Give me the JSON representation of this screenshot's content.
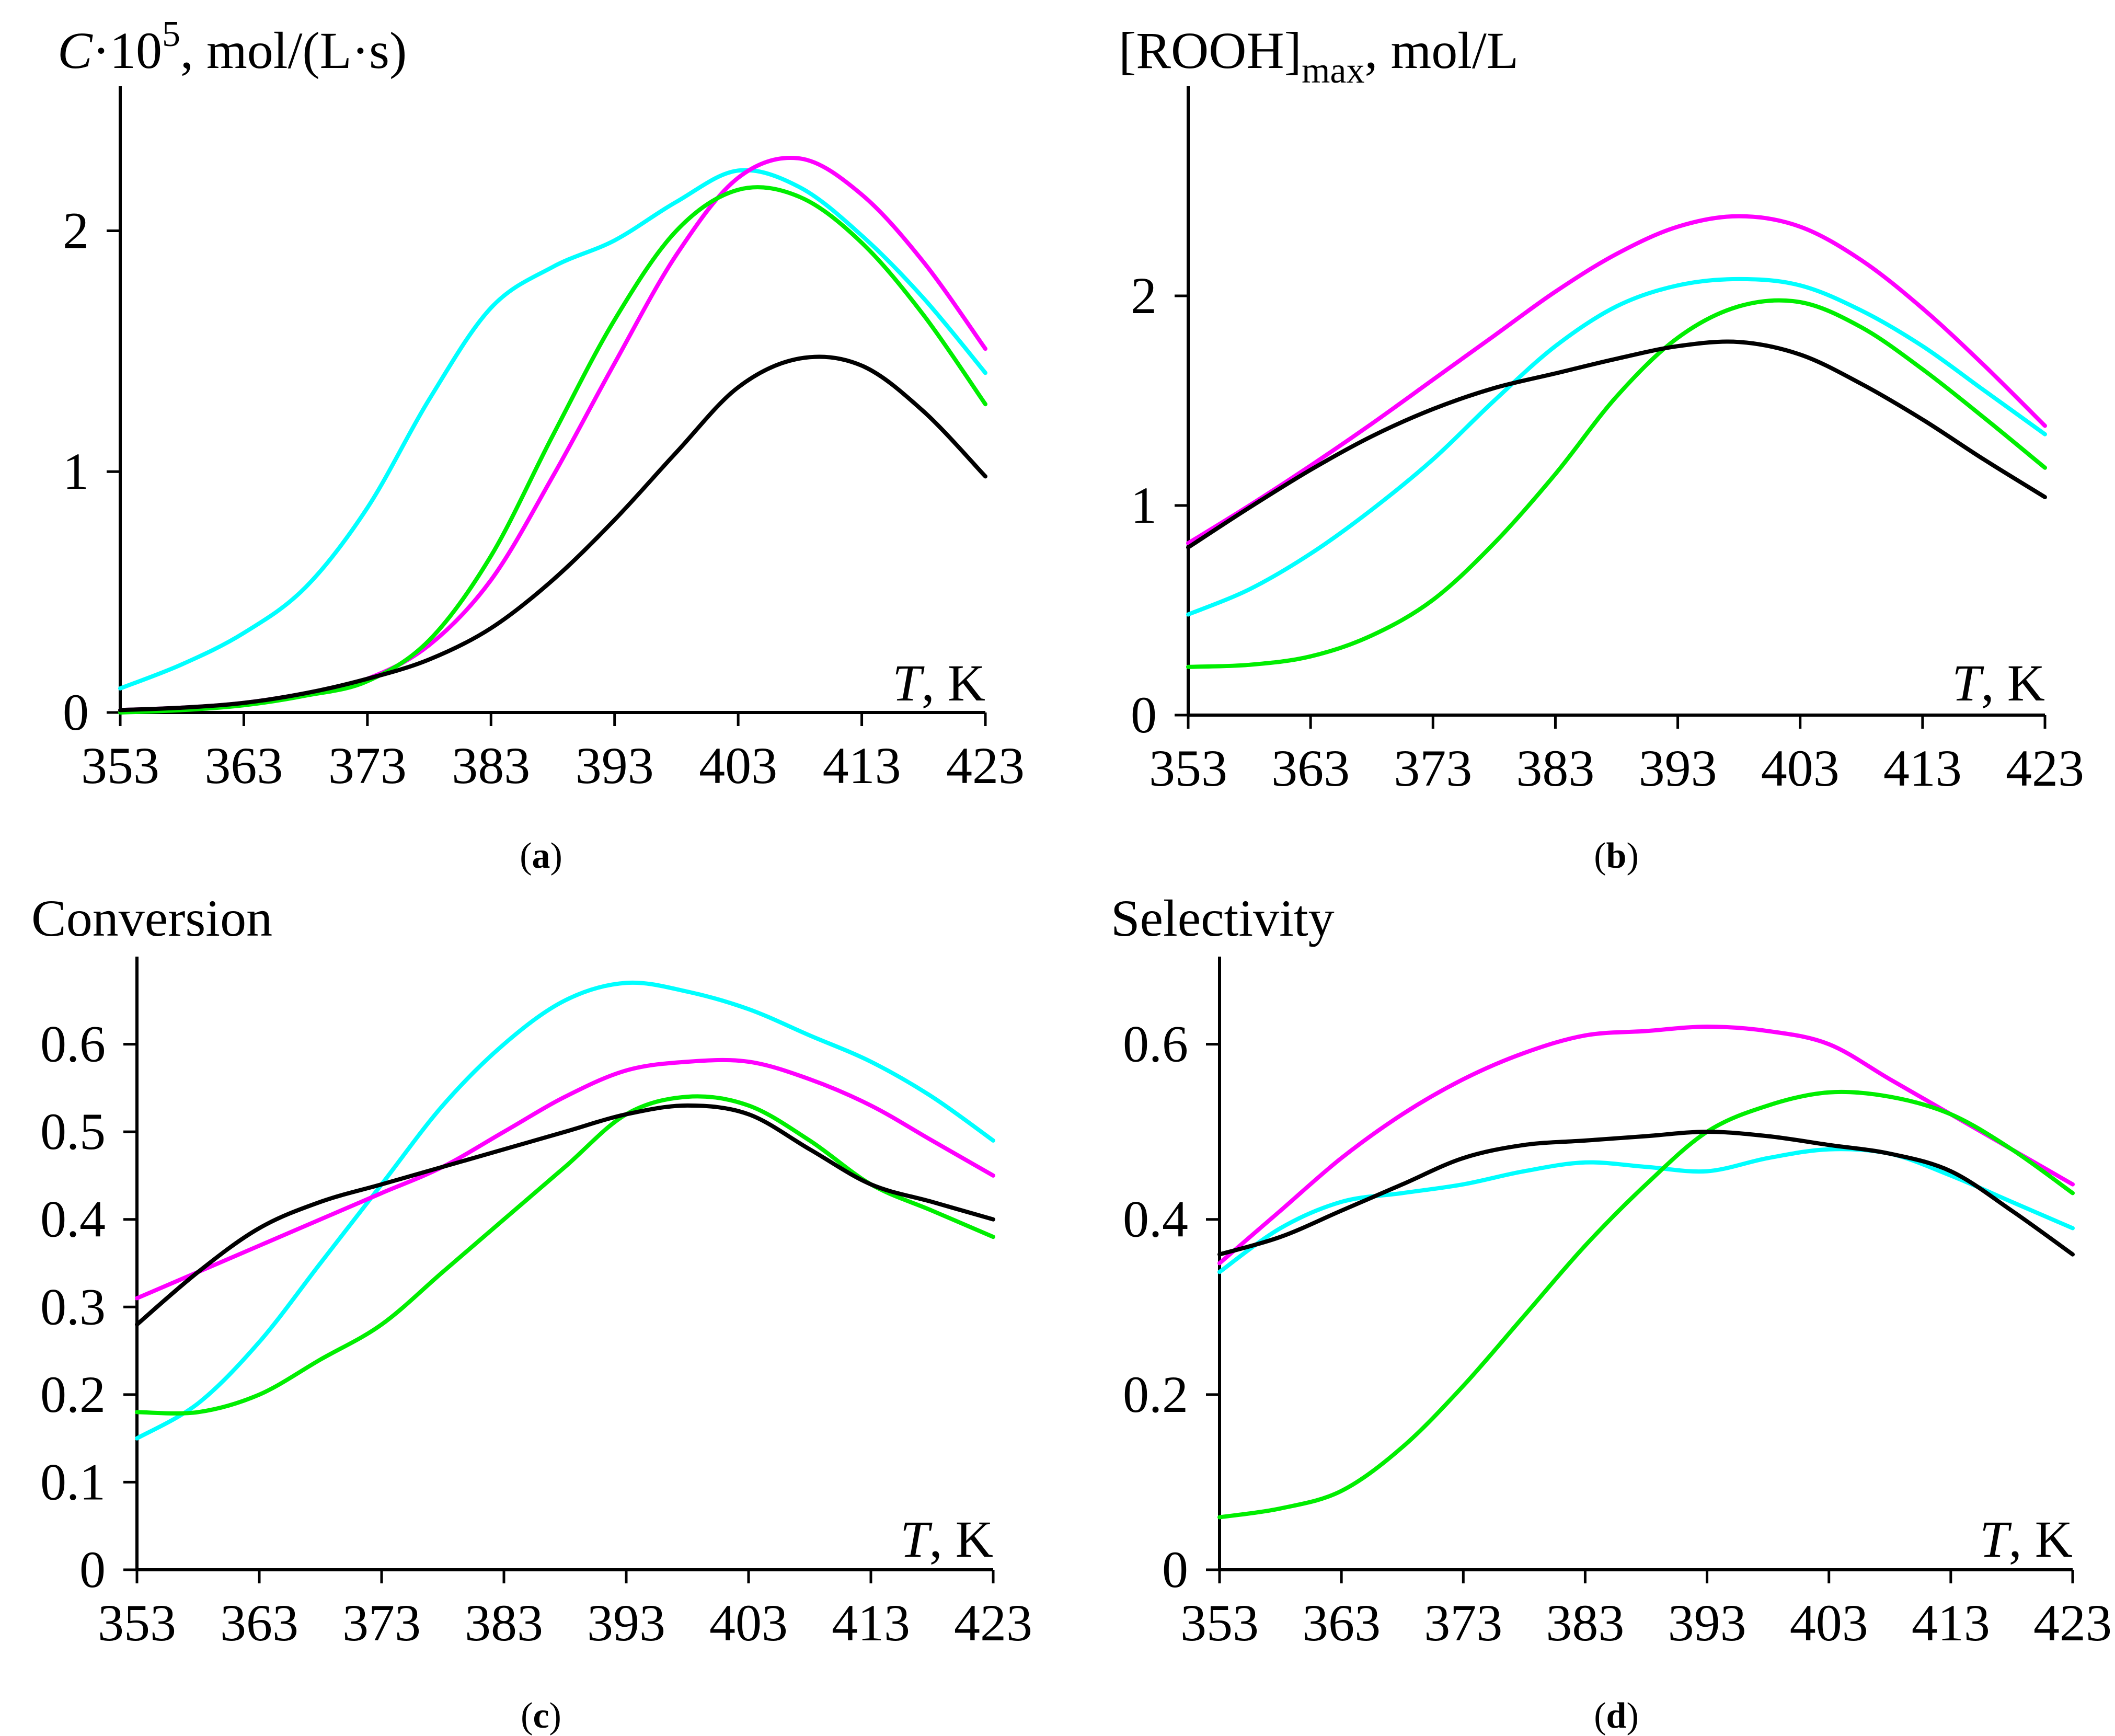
{
  "figure": {
    "panels": [
      {
        "id": "a",
        "panel_label": "a",
        "ylabel": {
          "symbol": "C",
          "mid": "·10",
          "sup": "5",
          "tail": ", mol/(L·s)"
        },
        "xlabel": {
          "symbol": "T",
          "tail": ", K"
        }
      },
      {
        "id": "b",
        "panel_label": "b",
        "ylabel": {
          "pre": "[ROOH]",
          "sub": "max",
          "tail": ", mol/L"
        },
        "xlabel": {
          "symbol": "T",
          "tail": ", K"
        }
      },
      {
        "id": "c",
        "panel_label": "c",
        "ylabel": {
          "text": "Conversion"
        },
        "xlabel": {
          "symbol": "T",
          "tail": ", K"
        }
      },
      {
        "id": "d",
        "panel_label": "d",
        "ylabel": {
          "text": "Selectivity"
        },
        "xlabel": {
          "symbol": "T",
          "tail": ", K"
        }
      }
    ]
  },
  "chart_data": [
    {
      "type": "line",
      "id": "a",
      "title": "",
      "xlabel": "T, K",
      "ylabel": "C·10^5, mol/(L·s)",
      "xlim": [
        353,
        423
      ],
      "ylim": [
        0,
        2.6
      ],
      "xticks": [
        353,
        363,
        373,
        383,
        393,
        403,
        413,
        423
      ],
      "yticks": [
        0,
        1,
        2
      ],
      "ytick_labels": [
        "0",
        "1",
        "2"
      ],
      "x": [
        353,
        358,
        363,
        368,
        373,
        378,
        383,
        388,
        393,
        398,
        403,
        408,
        413,
        418,
        423
      ],
      "series": [
        {
          "name": "cyan",
          "color": "#00ffff",
          "values": [
            0.1,
            0.2,
            0.33,
            0.52,
            0.85,
            1.3,
            1.68,
            1.85,
            1.96,
            2.12,
            2.25,
            2.18,
            1.98,
            1.72,
            1.41
          ]
        },
        {
          "name": "magenta",
          "color": "#ff00ff",
          "values": [
            0.01,
            0.02,
            0.04,
            0.08,
            0.14,
            0.28,
            0.55,
            0.98,
            1.45,
            1.9,
            2.22,
            2.3,
            2.15,
            1.87,
            1.51
          ]
        },
        {
          "name": "green",
          "color": "#00ee00",
          "values": [
            0.0,
            0.01,
            0.03,
            0.07,
            0.13,
            0.3,
            0.65,
            1.15,
            1.63,
            2.0,
            2.17,
            2.14,
            1.95,
            1.65,
            1.28
          ]
        },
        {
          "name": "black",
          "color": "#000000",
          "values": [
            0.01,
            0.02,
            0.04,
            0.08,
            0.14,
            0.22,
            0.35,
            0.55,
            0.8,
            1.08,
            1.35,
            1.47,
            1.44,
            1.25,
            0.98
          ]
        }
      ]
    },
    {
      "type": "line",
      "id": "b",
      "title": "",
      "xlabel": "T, K",
      "ylabel": "[ROOH]max, mol/L",
      "xlim": [
        353,
        423
      ],
      "ylim": [
        0,
        3.0
      ],
      "xticks": [
        353,
        363,
        373,
        383,
        393,
        403,
        413,
        423
      ],
      "yticks": [
        0,
        1,
        2
      ],
      "ytick_labels": [
        "0",
        "1",
        "2"
      ],
      "x": [
        353,
        358,
        363,
        368,
        373,
        378,
        383,
        388,
        393,
        398,
        403,
        408,
        413,
        418,
        423
      ],
      "series": [
        {
          "name": "magenta",
          "color": "#ff00ff",
          "values": [
            0.82,
            1.0,
            1.19,
            1.39,
            1.6,
            1.81,
            2.02,
            2.2,
            2.33,
            2.38,
            2.33,
            2.17,
            1.94,
            1.67,
            1.38
          ]
        },
        {
          "name": "cyan",
          "color": "#00ffff",
          "values": [
            0.48,
            0.6,
            0.77,
            0.98,
            1.22,
            1.5,
            1.76,
            1.95,
            2.05,
            2.08,
            2.05,
            1.93,
            1.76,
            1.55,
            1.34
          ]
        },
        {
          "name": "green",
          "color": "#00ee00",
          "values": [
            0.23,
            0.24,
            0.28,
            0.38,
            0.55,
            0.82,
            1.15,
            1.52,
            1.8,
            1.95,
            1.97,
            1.85,
            1.65,
            1.42,
            1.18
          ]
        },
        {
          "name": "black",
          "color": "#000000",
          "values": [
            0.8,
            0.99,
            1.17,
            1.33,
            1.46,
            1.56,
            1.63,
            1.7,
            1.76,
            1.78,
            1.72,
            1.58,
            1.41,
            1.22,
            1.04
          ]
        }
      ]
    },
    {
      "type": "line",
      "id": "c",
      "title": "",
      "xlabel": "T, K",
      "ylabel": "Conversion",
      "xlim": [
        353,
        423
      ],
      "ylim": [
        0,
        0.7
      ],
      "xticks": [
        353,
        363,
        373,
        383,
        393,
        403,
        413,
        423
      ],
      "yticks": [
        0,
        0.1,
        0.2,
        0.3,
        0.4,
        0.5,
        0.6
      ],
      "ytick_labels": [
        "0",
        "0.1",
        "0.2",
        "0.3",
        "0.4",
        "0.5",
        "0.6"
      ],
      "x": [
        353,
        358,
        363,
        368,
        373,
        378,
        383,
        388,
        393,
        398,
        403,
        408,
        413,
        418,
        423
      ],
      "series": [
        {
          "name": "cyan",
          "color": "#00ffff",
          "values": [
            0.15,
            0.19,
            0.26,
            0.35,
            0.44,
            0.53,
            0.6,
            0.65,
            0.67,
            0.66,
            0.64,
            0.61,
            0.58,
            0.54,
            0.49
          ]
        },
        {
          "name": "magenta",
          "color": "#ff00ff",
          "values": [
            0.31,
            0.34,
            0.37,
            0.4,
            0.43,
            0.46,
            0.5,
            0.54,
            0.57,
            0.58,
            0.58,
            0.56,
            0.53,
            0.49,
            0.45
          ]
        },
        {
          "name": "green",
          "color": "#00ee00",
          "values": [
            0.18,
            0.18,
            0.2,
            0.24,
            0.28,
            0.34,
            0.4,
            0.46,
            0.52,
            0.54,
            0.53,
            0.49,
            0.44,
            0.41,
            0.38
          ]
        },
        {
          "name": "black",
          "color": "#000000",
          "values": [
            0.28,
            0.34,
            0.39,
            0.42,
            0.44,
            0.46,
            0.48,
            0.5,
            0.52,
            0.53,
            0.52,
            0.48,
            0.44,
            0.42,
            0.4
          ]
        }
      ]
    },
    {
      "type": "line",
      "id": "d",
      "title": "",
      "xlabel": "T, K",
      "ylabel": "Selectivity",
      "xlim": [
        353,
        423
      ],
      "ylim": [
        0,
        0.7
      ],
      "xticks": [
        353,
        363,
        373,
        383,
        393,
        403,
        413,
        423
      ],
      "yticks": [
        0,
        0.2,
        0.4,
        0.6
      ],
      "ytick_labels": [
        "0",
        "0.2",
        "0.4",
        "0.6"
      ],
      "x": [
        353,
        358,
        363,
        368,
        373,
        378,
        383,
        388,
        393,
        398,
        403,
        408,
        413,
        418,
        423
      ],
      "series": [
        {
          "name": "magenta",
          "color": "#ff00ff",
          "values": [
            0.35,
            0.41,
            0.47,
            0.52,
            0.56,
            0.59,
            0.61,
            0.615,
            0.62,
            0.615,
            0.6,
            0.56,
            0.52,
            0.48,
            0.44
          ]
        },
        {
          "name": "cyan",
          "color": "#00ffff",
          "values": [
            0.34,
            0.39,
            0.42,
            0.43,
            0.44,
            0.455,
            0.465,
            0.46,
            0.455,
            0.47,
            0.48,
            0.475,
            0.45,
            0.42,
            0.39
          ]
        },
        {
          "name": "green",
          "color": "#00ee00",
          "values": [
            0.06,
            0.07,
            0.09,
            0.14,
            0.21,
            0.29,
            0.37,
            0.44,
            0.5,
            0.53,
            0.545,
            0.54,
            0.52,
            0.48,
            0.43
          ]
        },
        {
          "name": "black",
          "color": "#000000",
          "values": [
            0.36,
            0.38,
            0.41,
            0.44,
            0.47,
            0.485,
            0.49,
            0.495,
            0.5,
            0.495,
            0.485,
            0.475,
            0.455,
            0.41,
            0.36
          ]
        }
      ]
    }
  ]
}
